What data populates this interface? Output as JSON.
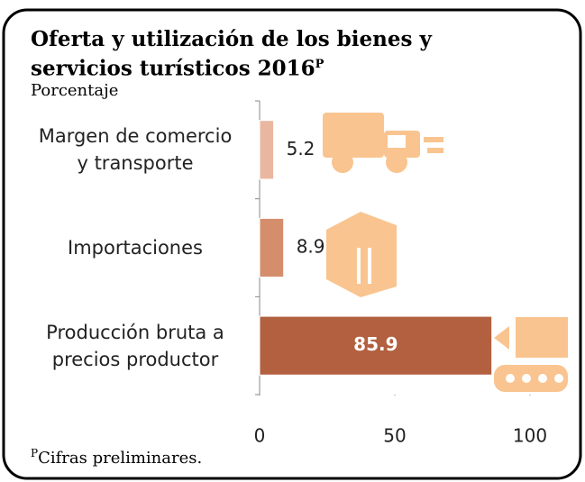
{
  "chart_data": {
    "type": "barh",
    "title": "Oferta y utilización de los bienes y servicios turísticos 2016",
    "title_superscript": "P",
    "subtitle": "Porcentaje",
    "categories": [
      "Margen de comercio\ny transporte",
      "Importaciones",
      "Producción bruta a\nprecios productor"
    ],
    "values": [
      5.2,
      8.9,
      85.9
    ],
    "colors": [
      "#e9b79f",
      "#d58e6c",
      "#b2603f"
    ],
    "xlim": [
      0,
      100
    ],
    "xticks": [
      0,
      50,
      100
    ],
    "footnote_marker": "P",
    "footnote": "Cifras preliminares."
  }
}
